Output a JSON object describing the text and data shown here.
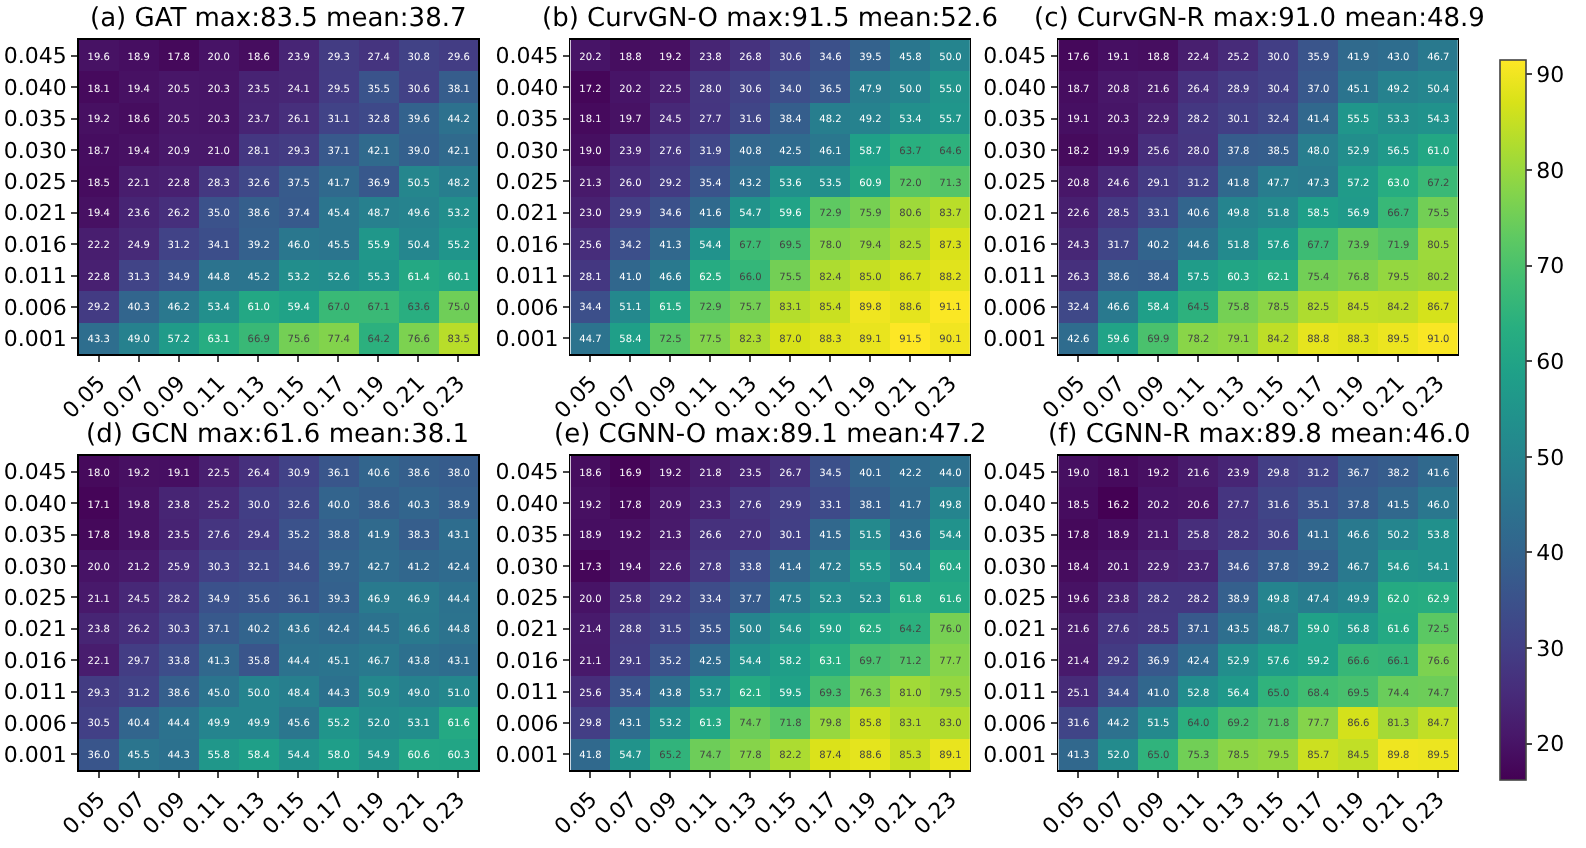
{
  "chart_data": [
    {
      "type": "heatmap",
      "title": "(a) GAT max:83.5 mean:38.7",
      "data_labels": true,
      "categories": [
        "0.05",
        "0.07",
        "0.09",
        "0.11",
        "0.13",
        "0.15",
        "0.17",
        "0.19",
        "0.21",
        "0.23"
      ],
      "y_categories": [
        "0.045",
        "0.040",
        "0.035",
        "0.030",
        "0.025",
        "0.021",
        "0.016",
        "0.011",
        "0.006",
        "0.001"
      ],
      "cells": [
        [
          19.6,
          18.9,
          17.8,
          20.0,
          18.6,
          23.9,
          29.3,
          27.4,
          30.8,
          29.6
        ],
        [
          18.1,
          19.4,
          20.5,
          20.3,
          23.5,
          24.1,
          29.5,
          35.5,
          30.6,
          38.1
        ],
        [
          19.2,
          18.6,
          20.5,
          20.3,
          23.7,
          26.1,
          31.1,
          32.8,
          39.6,
          44.2
        ],
        [
          18.7,
          19.4,
          20.9,
          21.0,
          28.1,
          29.3,
          37.1,
          42.1,
          39.0,
          42.1
        ],
        [
          18.5,
          22.1,
          22.8,
          28.3,
          32.6,
          37.5,
          41.7,
          36.9,
          50.5,
          48.2
        ],
        [
          19.4,
          23.6,
          26.2,
          35.0,
          38.6,
          37.4,
          45.4,
          48.7,
          49.6,
          53.2
        ],
        [
          22.2,
          24.9,
          31.2,
          34.1,
          39.2,
          46.0,
          45.5,
          55.9,
          50.4,
          55.2
        ],
        [
          22.8,
          31.3,
          34.9,
          44.8,
          45.2,
          53.2,
          52.6,
          55.3,
          61.4,
          60.1
        ],
        [
          29.2,
          40.3,
          46.2,
          53.4,
          61.0,
          59.4,
          67.0,
          67.1,
          63.6,
          75.0
        ],
        [
          43.3,
          49.0,
          57.2,
          63.1,
          66.9,
          75.6,
          77.4,
          64.2,
          76.6,
          83.5
        ]
      ],
      "cell_labels": [
        [
          "19.6",
          "18.9",
          "17.8",
          "20.0",
          "18.6",
          "23.9",
          "29.3",
          "27.4",
          "30.8",
          "29.6"
        ],
        [
          "18.1",
          "19.4",
          "20.5",
          "20.3",
          "23.5",
          "24.1",
          "29.5",
          "35.5",
          "30.6",
          "38.1"
        ],
        [
          "19.2",
          "18.6",
          "20.5",
          "20.3",
          "23.7",
          "26.1",
          "31.1",
          "32.8",
          "39.6",
          "44.2"
        ],
        [
          "18.7",
          "19.4",
          "20.9",
          "21.0",
          "28.1",
          "29.3",
          "37.1",
          "42.1",
          "39.0",
          "42.1"
        ],
        [
          "18.5",
          "22.1",
          "22.8",
          "28.3",
          "32.6",
          "37.5",
          "41.7",
          "36.9",
          "50.5",
          "48.2"
        ],
        [
          "19.4",
          "23.6",
          "26.2",
          "35.0",
          "38.6",
          "37.4",
          "45.4",
          "48.7",
          "49.6",
          "53.2"
        ],
        [
          "22.2",
          "24.9",
          "31.2",
          "34.1",
          "39.2",
          "46.0",
          "45.5",
          "55.9",
          "50.4",
          "55.2"
        ],
        [
          "22.8",
          "31.3",
          "34.9",
          "44.8",
          "45.2",
          "53.2",
          "52.6",
          "55.3",
          "61.4",
          "60.1"
        ],
        [
          "29.2",
          "40.3",
          "46.2",
          "53.4",
          "61.0",
          "59.4",
          "67.0",
          "67.1",
          "63.6",
          "75.0"
        ],
        [
          "43.3",
          "49.0",
          "57.2",
          "63.1",
          "66.9",
          "75.6",
          "77.4",
          "64.2",
          "76.6",
          "83.5"
        ]
      ]
    },
    {
      "type": "heatmap",
      "title": "(b) CurvGN-O max:91.5 mean:52.6",
      "data_labels": true,
      "categories": [
        "0.05",
        "0.07",
        "0.09",
        "0.11",
        "0.13",
        "0.15",
        "0.17",
        "0.19",
        "0.21",
        "0.23"
      ],
      "y_categories": [
        "0.045",
        "0.040",
        "0.035",
        "0.030",
        "0.025",
        "0.021",
        "0.016",
        "0.011",
        "0.006",
        "0.001"
      ],
      "cells": [
        [
          20.2,
          18.8,
          19.2,
          23.8,
          26.8,
          30.6,
          34.6,
          39.5,
          45.8,
          50.0
        ],
        [
          17.2,
          20.2,
          22.5,
          28.0,
          30.6,
          34.0,
          36.5,
          47.9,
          50.0,
          55.0
        ],
        [
          18.1,
          19.7,
          24.5,
          27.7,
          31.6,
          38.4,
          48.2,
          49.2,
          53.4,
          55.7
        ],
        [
          19.0,
          23.9,
          27.6,
          31.9,
          40.8,
          42.5,
          46.1,
          58.7,
          63.7,
          64.6
        ],
        [
          21.3,
          26.0,
          29.2,
          35.4,
          43.2,
          53.6,
          53.5,
          60.9,
          72.0,
          71.3
        ],
        [
          23.0,
          29.9,
          34.6,
          41.6,
          54.7,
          59.6,
          72.9,
          75.9,
          80.6,
          83.7
        ],
        [
          25.6,
          34.2,
          41.3,
          54.4,
          67.7,
          69.5,
          78.0,
          79.4,
          82.5,
          87.3
        ],
        [
          28.1,
          41.0,
          46.6,
          62.5,
          66.0,
          75.5,
          82.4,
          85.0,
          86.7,
          88.2
        ],
        [
          34.4,
          51.1,
          61.5,
          72.9,
          75.7,
          83.1,
          85.4,
          89.8,
          88.6,
          91.1
        ],
        [
          44.7,
          58.4,
          72.5,
          77.5,
          82.3,
          87.0,
          88.3,
          89.1,
          91.5,
          90.1
        ]
      ],
      "cell_labels": [
        [
          "20.2",
          "18.8",
          "19.2",
          "23.8",
          "26.8",
          "30.6",
          "34.6",
          "39.5",
          "45.8",
          "50.0"
        ],
        [
          "17.2",
          "20.2",
          "22.5",
          "28.0",
          "30.6",
          "34.0",
          "36.5",
          "47.9",
          "50.0",
          "55.0"
        ],
        [
          "18.1",
          "19.7",
          "24.5",
          "27.7",
          "31.6",
          "38.4",
          "48.2",
          "49.2",
          "53.4",
          "55.7"
        ],
        [
          "19.0",
          "23.9",
          "27.6",
          "31.9",
          "40.8",
          "42.5",
          "46.1",
          "58.7",
          "63.7",
          "64.6"
        ],
        [
          "21.3",
          "26.0",
          "29.2",
          "35.4",
          "43.2",
          "53.6",
          "53.5",
          "60.9",
          "72.0",
          "71.3"
        ],
        [
          "23.0",
          "29.9",
          "34.6",
          "41.6",
          "54.7",
          "59.6",
          "72.9",
          "75.9",
          "80.6",
          "83.7"
        ],
        [
          "25.6",
          "34.2",
          "41.3",
          "54.4",
          "67.7",
          "69.5",
          "78.0",
          "79.4",
          "82.5",
          "87.3"
        ],
        [
          "28.1",
          "41.0",
          "46.6",
          "62.5",
          "66.0",
          "75.5",
          "82.4",
          "85.0",
          "86.7",
          "88.2"
        ],
        [
          "34.4",
          "51.1",
          "61.5",
          "72.9",
          "75.7",
          "83.1",
          "85.4",
          "89.8",
          "88.6",
          "91.1"
        ],
        [
          "44.7",
          "58.4",
          "72.5",
          "77.5",
          "82.3",
          "87.0",
          "88.3",
          "89.1",
          "91.5",
          "90.1"
        ]
      ]
    },
    {
      "type": "heatmap",
      "title": "(c) CurvGN-R max:91.0 mean:48.9",
      "data_labels": true,
      "categories": [
        "0.05",
        "0.07",
        "0.09",
        "0.11",
        "0.13",
        "0.15",
        "0.17",
        "0.19",
        "0.21",
        "0.23"
      ],
      "y_categories": [
        "0.045",
        "0.040",
        "0.035",
        "0.030",
        "0.025",
        "0.021",
        "0.016",
        "0.011",
        "0.006",
        "0.001"
      ],
      "cells": [
        [
          17.6,
          19.1,
          18.8,
          22.4,
          25.2,
          30.0,
          35.9,
          41.9,
          43.0,
          46.7
        ],
        [
          18.7,
          20.8,
          21.6,
          26.4,
          28.9,
          30.4,
          37.0,
          45.1,
          49.2,
          50.4
        ],
        [
          19.1,
          20.3,
          22.9,
          28.2,
          30.1,
          32.4,
          41.4,
          55.5,
          53.3,
          54.3
        ],
        [
          18.2,
          19.9,
          25.6,
          28.0,
          37.8,
          38.5,
          48.0,
          52.9,
          56.5,
          61.0
        ],
        [
          20.8,
          24.6,
          29.1,
          31.2,
          41.8,
          47.7,
          47.3,
          57.2,
          63.0,
          67.2
        ],
        [
          22.6,
          28.5,
          33.1,
          40.6,
          49.8,
          51.8,
          58.5,
          56.9,
          66.7,
          75.5
        ],
        [
          24.3,
          31.7,
          40.2,
          44.6,
          51.8,
          57.6,
          67.7,
          73.9,
          71.9,
          80.5
        ],
        [
          26.3,
          38.6,
          38.4,
          57.5,
          60.3,
          62.1,
          75.4,
          76.8,
          79.5,
          80.2
        ],
        [
          32.4,
          46.6,
          58.4,
          64.5,
          75.8,
          78.5,
          82.5,
          84.5,
          84.2,
          86.7
        ],
        [
          42.6,
          59.6,
          69.9,
          78.2,
          79.1,
          84.2,
          88.8,
          88.3,
          89.5,
          91.0
        ]
      ],
      "cell_labels": [
        [
          "17.6",
          "19.1",
          "18.8",
          "22.4",
          "25.2",
          "30.0",
          "35.9",
          "41.9",
          "43.0",
          "46.7"
        ],
        [
          "18.7",
          "20.8",
          "21.6",
          "26.4",
          "28.9",
          "30.4",
          "37.0",
          "45.1",
          "49.2",
          "50.4"
        ],
        [
          "19.1",
          "20.3",
          "22.9",
          "28.2",
          "30.1",
          "32.4",
          "41.4",
          "55.5",
          "53.3",
          "54.3"
        ],
        [
          "18.2",
          "19.9",
          "25.6",
          "28.0",
          "37.8",
          "38.5",
          "48.0",
          "52.9",
          "56.5",
          "61.0"
        ],
        [
          "20.8",
          "24.6",
          "29.1",
          "31.2",
          "41.8",
          "47.7",
          "47.3",
          "57.2",
          "63.0",
          "67.2"
        ],
        [
          "22.6",
          "28.5",
          "33.1",
          "40.6",
          "49.8",
          "51.8",
          "58.5",
          "56.9",
          "66.7",
          "75.5"
        ],
        [
          "24.3",
          "31.7",
          "40.2",
          "44.6",
          "51.8",
          "57.6",
          "67.7",
          "73.9",
          "71.9",
          "80.5"
        ],
        [
          "26.3",
          "38.6",
          "38.4",
          "57.5",
          "60.3",
          "62.1",
          "75.4",
          "76.8",
          "79.5",
          "80.2"
        ],
        [
          "32.4",
          "46.6",
          "58.4",
          "64.5",
          "75.8",
          "78.5",
          "82.5",
          "84.5",
          "84.2",
          "86.7"
        ],
        [
          "42.6",
          "59.6",
          "69.9",
          "78.2",
          "79.1",
          "84.2",
          "88.8",
          "88.3",
          "89.5",
          "91.0"
        ]
      ]
    },
    {
      "type": "heatmap",
      "title": "(d) GCN max:61.6 mean:38.1",
      "data_labels": true,
      "categories": [
        "0.05",
        "0.07",
        "0.09",
        "0.11",
        "0.13",
        "0.15",
        "0.17",
        "0.19",
        "0.21",
        "0.23"
      ],
      "y_categories": [
        "0.045",
        "0.040",
        "0.035",
        "0.030",
        "0.025",
        "0.021",
        "0.016",
        "0.011",
        "0.006",
        "0.001"
      ],
      "cells": [
        [
          18.0,
          19.2,
          19.1,
          22.5,
          26.4,
          30.9,
          36.1,
          40.6,
          38.6,
          38.0
        ],
        [
          17.1,
          19.8,
          23.8,
          25.2,
          30.0,
          32.6,
          40.0,
          38.6,
          40.3,
          38.9
        ],
        [
          17.8,
          19.8,
          23.5,
          27.6,
          29.4,
          35.2,
          38.8,
          41.9,
          38.3,
          43.1
        ],
        [
          20.0,
          21.2,
          25.9,
          30.3,
          32.1,
          34.6,
          39.7,
          42.7,
          41.2,
          42.4
        ],
        [
          21.1,
          24.5,
          28.2,
          34.9,
          35.6,
          36.1,
          39.3,
          46.9,
          46.9,
          44.4
        ],
        [
          23.8,
          26.2,
          30.3,
          37.1,
          40.2,
          43.6,
          42.4,
          44.5,
          46.6,
          44.8
        ],
        [
          22.1,
          29.7,
          33.8,
          41.3,
          35.8,
          44.4,
          45.1,
          46.7,
          43.8,
          43.1
        ],
        [
          29.3,
          31.2,
          38.6,
          45.0,
          50.0,
          48.4,
          44.3,
          50.9,
          49.0,
          51.0
        ],
        [
          30.5,
          40.4,
          44.4,
          49.9,
          49.9,
          45.6,
          55.2,
          52.0,
          53.1,
          61.6
        ],
        [
          36.0,
          45.5,
          44.3,
          55.8,
          58.4,
          54.4,
          58.0,
          54.9,
          60.6,
          60.3
        ]
      ],
      "cell_labels": [
        [
          "18.0",
          "19.2",
          "19.1",
          "22.5",
          "26.4",
          "30.9",
          "36.1",
          "40.6",
          "38.6",
          "38.0"
        ],
        [
          "17.1",
          "19.8",
          "23.8",
          "25.2",
          "30.0",
          "32.6",
          "40.0",
          "38.6",
          "40.3",
          "38.9"
        ],
        [
          "17.8",
          "19.8",
          "23.5",
          "27.6",
          "29.4",
          "35.2",
          "38.8",
          "41.9",
          "38.3",
          "43.1"
        ],
        [
          "20.0",
          "21.2",
          "25.9",
          "30.3",
          "32.1",
          "34.6",
          "39.7",
          "42.7",
          "41.2",
          "42.4"
        ],
        [
          "21.1",
          "24.5",
          "28.2",
          "34.9",
          "35.6",
          "36.1",
          "39.3",
          "46.9",
          "46.9",
          "44.4"
        ],
        [
          "23.8",
          "26.2",
          "30.3",
          "37.1",
          "40.2",
          "43.6",
          "42.4",
          "44.5",
          "46.6",
          "44.8"
        ],
        [
          "22.1",
          "29.7",
          "33.8",
          "41.3",
          "35.8",
          "44.4",
          "45.1",
          "46.7",
          "43.8",
          "43.1"
        ],
        [
          "29.3",
          "31.2",
          "38.6",
          "45.0",
          "50.0",
          "48.4",
          "44.3",
          "50.9",
          "49.0",
          "51.0"
        ],
        [
          "30.5",
          "40.4",
          "44.4",
          "49.9",
          "49.9",
          "45.6",
          "55.2",
          "52.0",
          "53.1",
          "61.6"
        ],
        [
          "36.0",
          "45.5",
          "44.3",
          "55.8",
          "58.4",
          "54.4",
          "58.0",
          "54.9",
          "60.6",
          "60.3"
        ]
      ]
    },
    {
      "type": "heatmap",
      "title": "(e) CGNN-O max:89.1 mean:47.2",
      "data_labels": true,
      "categories": [
        "0.05",
        "0.07",
        "0.09",
        "0.11",
        "0.13",
        "0.15",
        "0.17",
        "0.19",
        "0.21",
        "0.23"
      ],
      "y_categories": [
        "0.045",
        "0.040",
        "0.035",
        "0.030",
        "0.025",
        "0.021",
        "0.016",
        "0.011",
        "0.006",
        "0.001"
      ],
      "cells": [
        [
          18.6,
          16.9,
          19.2,
          21.8,
          23.5,
          26.7,
          34.5,
          40.1,
          42.2,
          44.0
        ],
        [
          19.2,
          17.8,
          20.9,
          23.3,
          27.6,
          29.9,
          33.1,
          38.1,
          41.7,
          49.8
        ],
        [
          18.9,
          19.2,
          21.3,
          26.6,
          27.0,
          30.1,
          41.5,
          51.5,
          43.6,
          54.4
        ],
        [
          17.3,
          19.4,
          22.6,
          27.8,
          33.8,
          41.4,
          47.2,
          55.5,
          50.4,
          60.4
        ],
        [
          20.0,
          25.8,
          29.2,
          33.4,
          37.7,
          47.5,
          52.3,
          52.3,
          61.8,
          61.6
        ],
        [
          21.4,
          28.8,
          31.5,
          35.5,
          50.0,
          54.6,
          59.0,
          62.5,
          64.2,
          76.0
        ],
        [
          21.1,
          29.1,
          35.2,
          42.5,
          54.4,
          58.2,
          63.1,
          69.7,
          71.2,
          77.7
        ],
        [
          25.6,
          35.4,
          43.8,
          53.7,
          62.1,
          59.5,
          69.3,
          76.3,
          81.0,
          79.5
        ],
        [
          29.8,
          43.1,
          53.2,
          61.3,
          74.7,
          71.8,
          79.8,
          85.8,
          83.1,
          83.0
        ],
        [
          41.8,
          54.7,
          65.2,
          74.7,
          77.8,
          82.2,
          87.4,
          88.6,
          85.3,
          89.1
        ]
      ],
      "cell_labels": [
        [
          "18.6",
          "16.9",
          "19.2",
          "21.8",
          "23.5",
          "26.7",
          "34.5",
          "40.1",
          "42.2",
          "44.0"
        ],
        [
          "19.2",
          "17.8",
          "20.9",
          "23.3",
          "27.6",
          "29.9",
          "33.1",
          "38.1",
          "41.7",
          "49.8"
        ],
        [
          "18.9",
          "19.2",
          "21.3",
          "26.6",
          "27.0",
          "30.1",
          "41.5",
          "51.5",
          "43.6",
          "54.4"
        ],
        [
          "17.3",
          "19.4",
          "22.6",
          "27.8",
          "33.8",
          "41.4",
          "47.2",
          "55.5",
          "50.4",
          "60.4"
        ],
        [
          "20.0",
          "25.8",
          "29.2",
          "33.4",
          "37.7",
          "47.5",
          "52.3",
          "52.3",
          "61.8",
          "61.6"
        ],
        [
          "21.4",
          "28.8",
          "31.5",
          "35.5",
          "50.0",
          "54.6",
          "59.0",
          "62.5",
          "64.2",
          "76.0"
        ],
        [
          "21.1",
          "29.1",
          "35.2",
          "42.5",
          "54.4",
          "58.2",
          "63.1",
          "69.7",
          "71.2",
          "77.7"
        ],
        [
          "25.6",
          "35.4",
          "43.8",
          "53.7",
          "62.1",
          "59.5",
          "69.3",
          "76.3",
          "81.0",
          "79.5"
        ],
        [
          "29.8",
          "43.1",
          "53.2",
          "61.3",
          "74.7",
          "71.8",
          "79.8",
          "85.8",
          "83.1",
          "83.0"
        ],
        [
          "41.8",
          "54.7",
          "65.2",
          "74.7",
          "77.8",
          "82.2",
          "87.4",
          "88.6",
          "85.3",
          "89.1"
        ]
      ]
    },
    {
      "type": "heatmap",
      "title": "(f) CGNN-R max:89.8 mean:46.0",
      "data_labels": true,
      "clim": [
        16.2,
        91.5
      ],
      "cticks": [
        20,
        30,
        40,
        50,
        60,
        70,
        80,
        90
      ],
      "categories": [
        "0.05",
        "0.07",
        "0.09",
        "0.11",
        "0.13",
        "0.15",
        "0.17",
        "0.19",
        "0.21",
        "0.23"
      ],
      "y_categories": [
        "0.045",
        "0.040",
        "0.035",
        "0.030",
        "0.025",
        "0.021",
        "0.016",
        "0.011",
        "0.006",
        "0.001"
      ],
      "cells": [
        [
          19.0,
          18.1,
          19.2,
          21.6,
          23.9,
          29.8,
          31.2,
          36.7,
          38.2,
          41.6
        ],
        [
          18.5,
          16.2,
          20.2,
          20.6,
          27.7,
          31.6,
          35.1,
          37.8,
          41.5,
          46.0
        ],
        [
          17.8,
          18.9,
          21.1,
          25.8,
          28.2,
          30.6,
          41.1,
          46.6,
          50.2,
          53.8
        ],
        [
          18.4,
          20.1,
          22.9,
          23.7,
          34.6,
          37.8,
          39.2,
          46.7,
          54.6,
          54.1
        ],
        [
          19.6,
          23.8,
          28.2,
          28.2,
          38.9,
          49.8,
          47.4,
          49.9,
          62.0,
          62.9
        ],
        [
          21.6,
          27.6,
          28.5,
          37.1,
          43.5,
          48.7,
          59.0,
          56.8,
          61.6,
          72.5
        ],
        [
          21.4,
          29.2,
          36.9,
          42.4,
          52.9,
          57.6,
          59.2,
          66.6,
          66.1,
          76.6
        ],
        [
          25.1,
          34.4,
          41.0,
          52.8,
          56.4,
          65.0,
          68.4,
          69.5,
          74.4,
          74.7
        ],
        [
          31.6,
          44.2,
          51.5,
          64.0,
          69.2,
          71.8,
          77.7,
          86.6,
          81.3,
          84.7
        ],
        [
          41.3,
          52.0,
          65.0,
          75.3,
          78.5,
          79.5,
          85.7,
          84.5,
          89.8,
          89.5
        ]
      ],
      "cell_labels": [
        [
          "19.0",
          "18.1",
          "19.2",
          "21.6",
          "23.9",
          "29.8",
          "31.2",
          "36.7",
          "38.2",
          "41.6"
        ],
        [
          "18.5",
          "16.2",
          "20.2",
          "20.6",
          "27.7",
          "31.6",
          "35.1",
          "37.8",
          "41.5",
          "46.0"
        ],
        [
          "17.8",
          "18.9",
          "21.1",
          "25.8",
          "28.2",
          "30.6",
          "41.1",
          "46.6",
          "50.2",
          "53.8"
        ],
        [
          "18.4",
          "20.1",
          "22.9",
          "23.7",
          "34.6",
          "37.8",
          "39.2",
          "46.7",
          "54.6",
          "54.1"
        ],
        [
          "19.6",
          "23.8",
          "28.2",
          "28.2",
          "38.9",
          "49.8",
          "47.4",
          "49.9",
          "62.0",
          "62.9"
        ],
        [
          "21.6",
          "27.6",
          "28.5",
          "37.1",
          "43.5",
          "48.7",
          "59.0",
          "56.8",
          "61.6",
          "72.5"
        ],
        [
          "21.4",
          "29.2",
          "36.9",
          "42.4",
          "52.9",
          "57.6",
          "59.2",
          "66.6",
          "66.1",
          "76.6"
        ],
        [
          "25.1",
          "34.4",
          "41.0",
          "52.8",
          "56.4",
          "65.0",
          "68.4",
          "69.5",
          "74.4",
          "74.7"
        ],
        [
          "31.6",
          "44.2",
          "51.5",
          "64.0",
          "69.2",
          "71.8",
          "77.7",
          "86.6",
          "81.3",
          "84.7"
        ],
        [
          "41.3",
          "52.0",
          "65.0",
          "75.3",
          "78.5",
          "79.5",
          "85.7",
          "84.5",
          "89.8",
          "89.5"
        ]
      ]
    }
  ]
}
